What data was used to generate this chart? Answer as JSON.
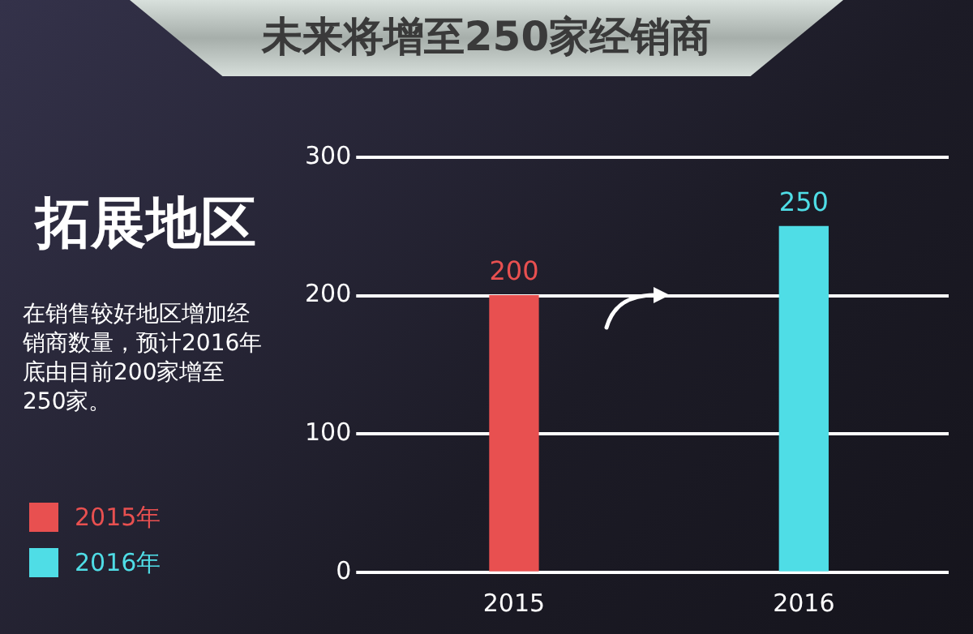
{
  "chart_data": {
    "type": "bar",
    "title": "未来将增至250家经销商",
    "subtitle": "拓展地区",
    "annotations": [
      "在销售较好地区增加经销商数量，预计2016年底由目前200家增至250家。"
    ],
    "categories": [
      "2015",
      "2016"
    ],
    "series": [
      {
        "name": "2015年",
        "color": "#e85050",
        "values": [
          200,
          null
        ]
      },
      {
        "name": "2016年",
        "color": "#4fdde6",
        "values": [
          null,
          250
        ]
      }
    ],
    "ylim": [
      0,
      300
    ],
    "yticks": [
      0,
      100,
      200,
      300
    ],
    "grid": "y",
    "legend": "left",
    "data_labels": true
  }
}
